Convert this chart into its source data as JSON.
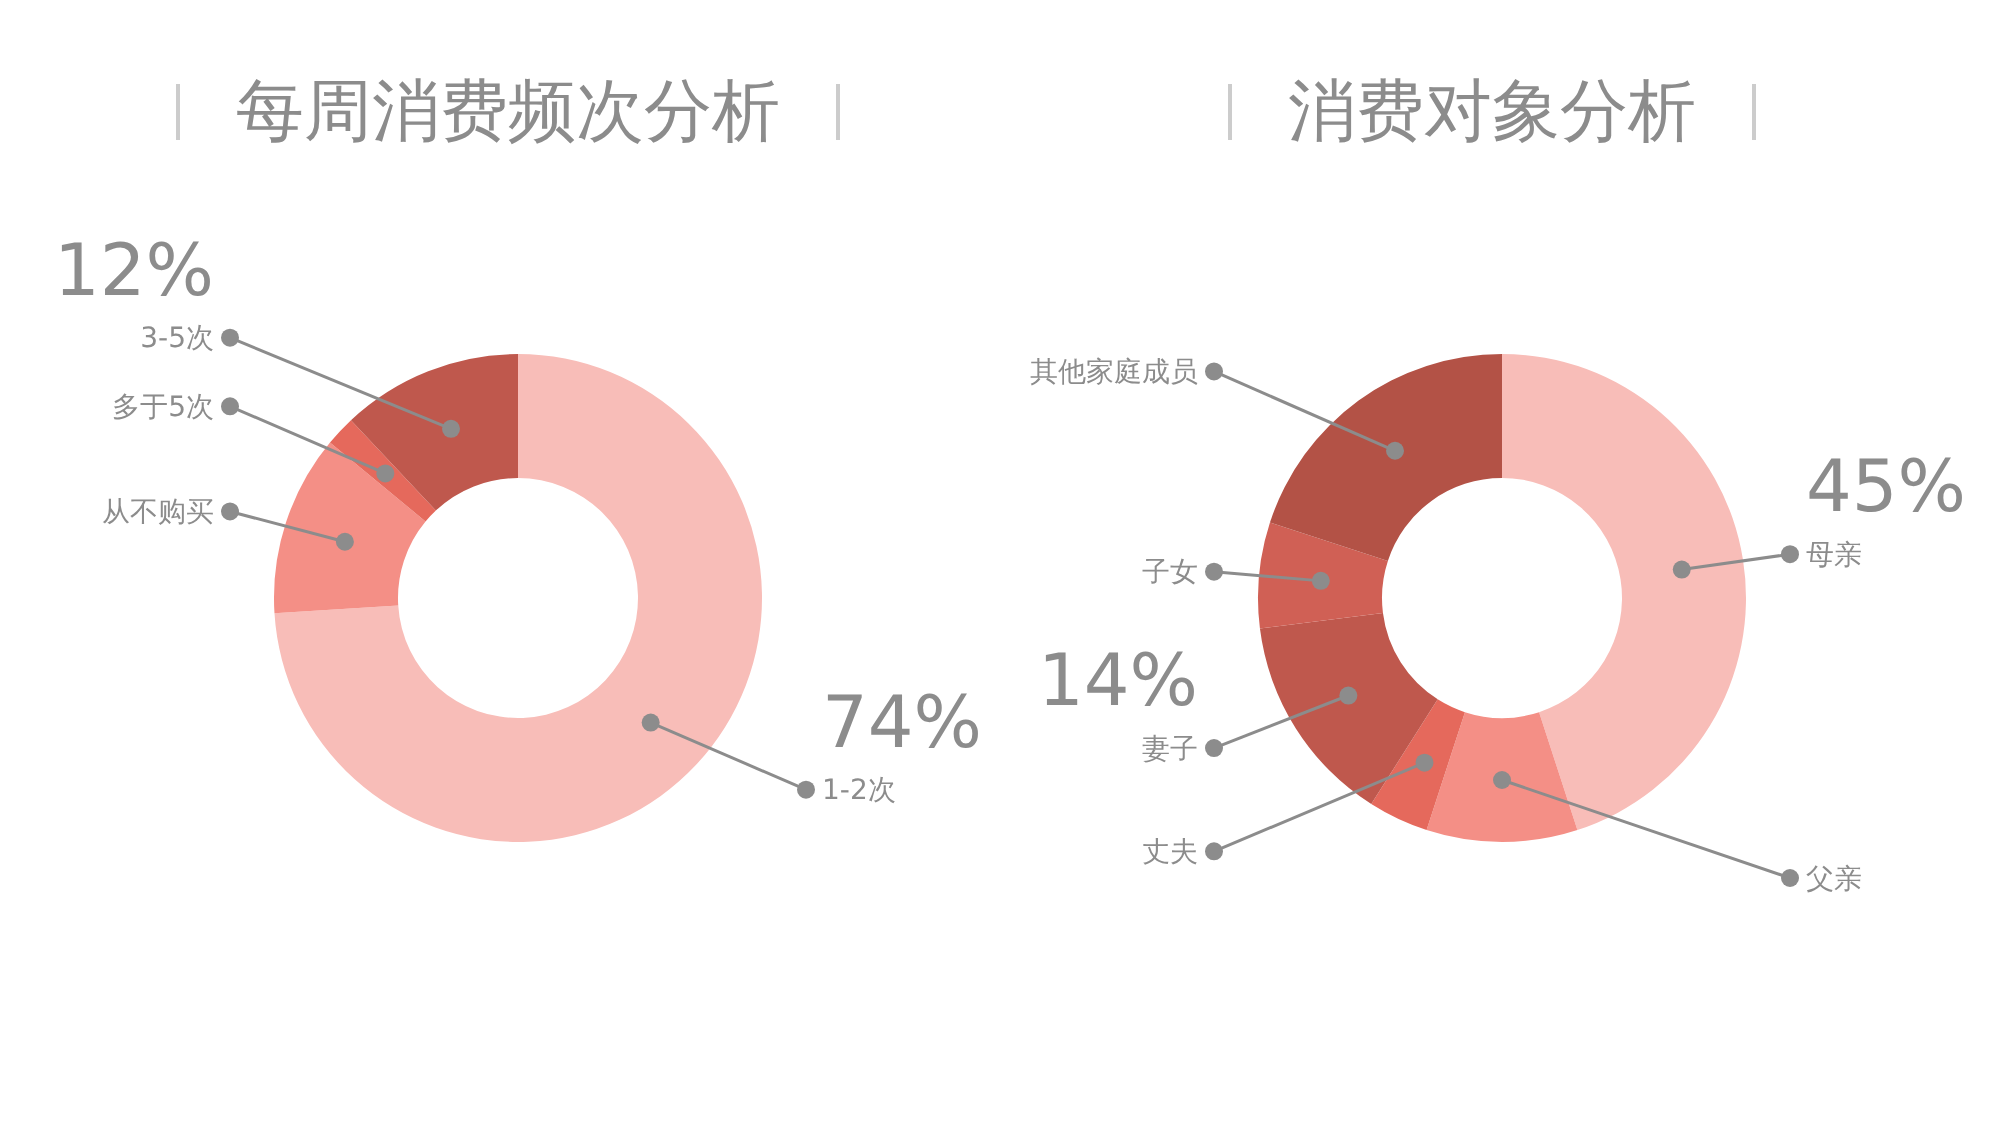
{
  "chart_data": [
    {
      "type": "donut",
      "title": "每周消费频次分析",
      "categories": [
        "1-2次",
        "从不购买",
        "多于5次",
        "3-5次"
      ],
      "values": [
        74,
        12,
        2,
        12
      ],
      "value_labels": [
        "74%",
        null,
        null,
        "12%"
      ],
      "colors": [
        "#f8bdb8",
        "#f48f86",
        "#e5695c",
        "#bf584d"
      ]
    },
    {
      "type": "donut",
      "title": "消费对象分析",
      "categories": [
        "母亲",
        "父亲",
        "丈夫",
        "妻子",
        "子女",
        "其他家庭成员"
      ],
      "values": [
        45,
        10,
        4,
        14,
        7,
        20
      ],
      "value_labels": [
        "45%",
        null,
        null,
        "14%",
        null,
        null
      ],
      "colors": [
        "#f8bdb8",
        "#f48f86",
        "#e5695c",
        "#bf584d",
        "#d06055",
        "#b35246"
      ]
    }
  ]
}
